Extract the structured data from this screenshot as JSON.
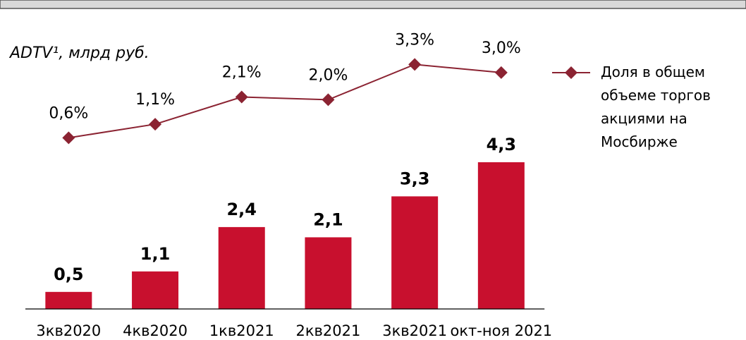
{
  "chart_data": {
    "type": "bar",
    "subtitle": "ADTV¹, млрд руб.",
    "categories": [
      "3кв2020",
      "4кв2020",
      "1кв2021",
      "2кв2021",
      "3кв2021",
      "окт-ноя 2021"
    ],
    "ylim": [
      0,
      8.6
    ],
    "y2lim": [
      -5.7,
      5.1
    ],
    "series": [
      {
        "type": "bar",
        "color": "#c8102e",
        "values": [
          0.5,
          1.1,
          2.4,
          2.1,
          3.3,
          4.3
        ],
        "value_labels": [
          "0,5",
          "1,1",
          "2,4",
          "2,1",
          "3,3",
          "4,3"
        ]
      },
      {
        "type": "line",
        "axis": "y2",
        "name": "Доля в общем объеме торгов акциями на Мосбирже",
        "color": "#8b2332",
        "values": [
          0.6,
          1.1,
          2.1,
          2.0,
          3.3,
          3.0
        ],
        "value_labels": [
          "0,6%",
          "1,1%",
          "2,1%",
          "2,0%",
          "3,3%",
          "3,0%"
        ]
      }
    ],
    "legend": "right"
  }
}
